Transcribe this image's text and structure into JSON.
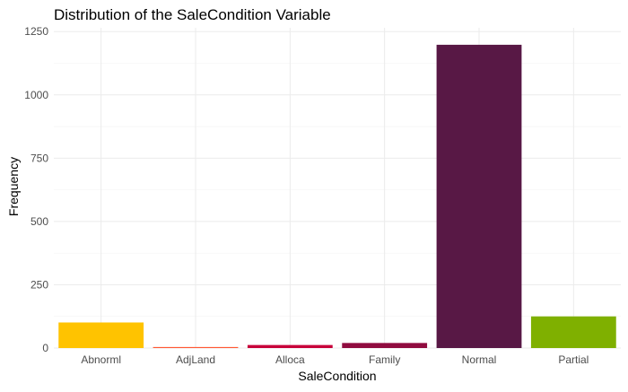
{
  "chart_data": {
    "type": "bar",
    "title": "Distribution of the SaleCondition Variable",
    "xlabel": "SaleCondition",
    "ylabel": "Frequency",
    "categories": [
      "Abnorml",
      "AdjLand",
      "Alloca",
      "Family",
      "Normal",
      "Partial"
    ],
    "values": [
      101,
      4,
      12,
      20,
      1198,
      125
    ],
    "colors": [
      "#FFC300",
      "#FF5733",
      "#C70039",
      "#900C3F",
      "#581845",
      "#7FB000"
    ],
    "ylim": [
      0,
      1265
    ],
    "yticks": [
      0,
      250,
      500,
      750,
      1000,
      1250
    ],
    "ytick_labels": [
      "0",
      "250",
      "500",
      "750",
      "1000",
      "1250"
    ],
    "grid": true,
    "legend": "none"
  }
}
